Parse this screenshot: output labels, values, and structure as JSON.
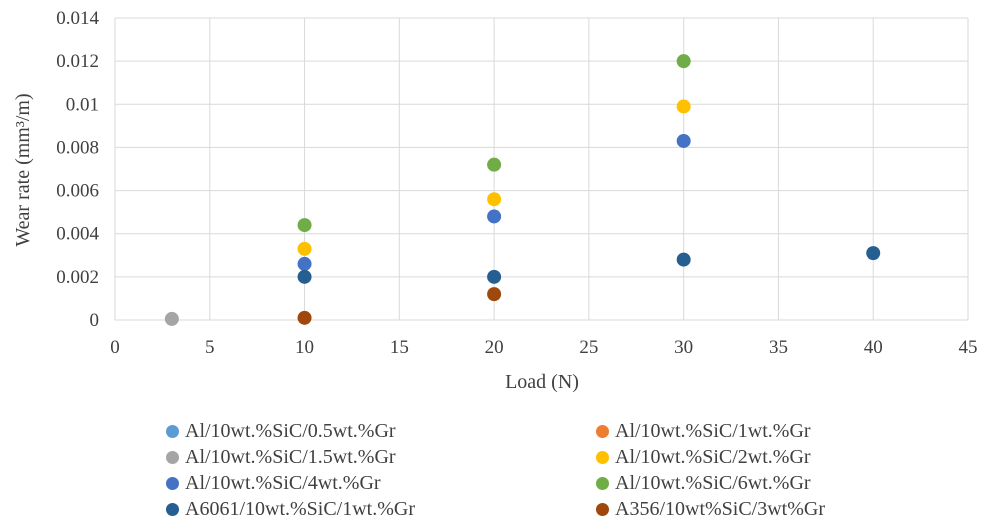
{
  "chart_data": {
    "type": "scatter",
    "xlabel": "Load (N)",
    "ylabel": "Wear rate (mm³/m)",
    "xlim": [
      0,
      45
    ],
    "ylim": [
      0,
      0.014
    ],
    "x_ticks": [
      0,
      5,
      10,
      15,
      20,
      25,
      30,
      35,
      40,
      45
    ],
    "x_tick_labels": [
      "0",
      "5",
      "10",
      "15",
      "20",
      "25",
      "30",
      "35",
      "40",
      "45"
    ],
    "y_ticks": [
      0,
      0.002,
      0.004,
      0.006,
      0.008,
      0.01,
      0.012,
      0.014
    ],
    "y_tick_labels": [
      "0",
      "0.002",
      "0.004",
      "0.006",
      "0.008",
      "0.01",
      "0.012",
      "0.014"
    ],
    "grid": true,
    "legend_position": "bottom",
    "series": [
      {
        "name": "Al/10wt.%SiC/0.5wt.%Gr",
        "color": "#5B9BD5",
        "points": []
      },
      {
        "name": "Al/10wt.%SiC/1wt.%Gr",
        "color": "#ED7D31",
        "points": []
      },
      {
        "name": "Al/10wt.%SiC/1.5wt.%Gr",
        "color": "#A5A5A5",
        "points": [
          [
            3,
            5e-05
          ]
        ]
      },
      {
        "name": "Al/10wt.%SiC/2wt.%Gr",
        "color": "#FFC000",
        "points": [
          [
            10,
            0.0033
          ],
          [
            20,
            0.0056
          ],
          [
            30,
            0.0099
          ]
        ]
      },
      {
        "name": "Al/10wt.%SiC/4wt.%Gr",
        "color": "#4472C4",
        "points": [
          [
            10,
            0.0026
          ],
          [
            20,
            0.0048
          ],
          [
            30,
            0.0083
          ]
        ]
      },
      {
        "name": "Al/10wt.%SiC/6wt.%Gr",
        "color": "#70AD47",
        "points": [
          [
            10,
            0.0044
          ],
          [
            20,
            0.0072
          ],
          [
            30,
            0.012
          ]
        ]
      },
      {
        "name": "A6061/10wt.%SiC/1wt.%Gr",
        "color": "#255E91",
        "points": [
          [
            10,
            0.002
          ],
          [
            20,
            0.002
          ],
          [
            30,
            0.0028
          ],
          [
            40,
            0.0031
          ]
        ]
      },
      {
        "name": "A356/10wt%SiC/3wt%Gr",
        "color": "#9E480E",
        "points": [
          [
            10,
            0.0001
          ],
          [
            20,
            0.0012
          ]
        ]
      }
    ]
  }
}
